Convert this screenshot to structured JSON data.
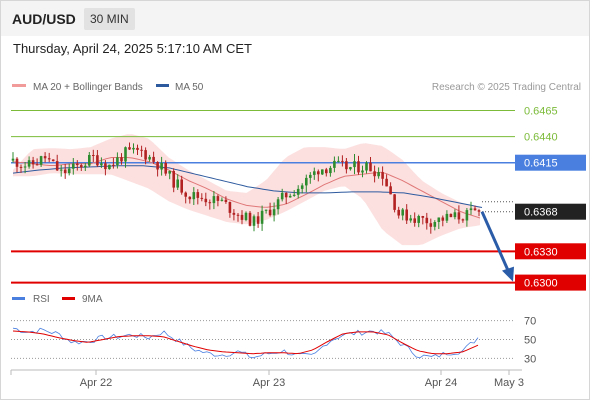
{
  "header": {
    "pair": "AUD/USD",
    "timeframe": "30 MIN"
  },
  "datetime": "Thursday, April 24, 2025 5:17:10 AM CET",
  "legend": {
    "ma20_bb": "MA 20 + Bollinger Bands",
    "ma50": "MA 50"
  },
  "copyright": "Research © 2025 Trading Central",
  "colors": {
    "bb": "#f29b9b",
    "ma50": "#2d5a9e",
    "green": "#7cbb3a",
    "blue": "#4a7fe0",
    "red": "#e00000",
    "candle_up": "#2e8b2e",
    "candle_down": "#b22222",
    "arrow": "#2a5ca8"
  },
  "chart_data": [
    {
      "type": "candlestick",
      "title": "AUD/USD 30 MIN",
      "ylim": [
        0.6291,
        0.6478
      ],
      "x_ticks": [
        "Apr 22",
        "Apr 23",
        "Apr 24",
        "May 3"
      ],
      "levels": [
        {
          "value": 0.6465,
          "label": "0.6465",
          "style": "resistance",
          "color": "#7cbb3a"
        },
        {
          "value": 0.644,
          "label": "0.6440",
          "style": "resistance",
          "color": "#7cbb3a"
        },
        {
          "value": 0.6415,
          "label": "0.6415",
          "style": "pivot",
          "color": "#4a7fe0"
        },
        {
          "value": 0.6368,
          "label": "0.6368",
          "style": "last",
          "color": "#333333"
        },
        {
          "value": 0.633,
          "label": "0.6330",
          "style": "support",
          "color": "#e00000"
        },
        {
          "value": 0.63,
          "label": "0.6300",
          "style": "support",
          "color": "#e00000"
        }
      ],
      "price_anchors": [
        0.6417,
        0.6412,
        0.642,
        0.6405,
        0.6411,
        0.642,
        0.6412,
        0.6424,
        0.6426,
        0.6414,
        0.6397,
        0.6384,
        0.6381,
        0.6377,
        0.6366,
        0.6358,
        0.637,
        0.6384,
        0.6394,
        0.6409,
        0.6412,
        0.641,
        0.6412,
        0.6404,
        0.6366,
        0.6362,
        0.6359,
        0.6362,
        0.6364,
        0.6368
      ],
      "ma20_anchors": [
        0.6416,
        0.6414,
        0.6412,
        0.6414,
        0.6414,
        0.642,
        0.642,
        0.6416,
        0.6408,
        0.6398,
        0.639,
        0.638,
        0.6374,
        0.6372,
        0.6375,
        0.6384,
        0.6394,
        0.6402,
        0.6404,
        0.6406,
        0.6398,
        0.6388,
        0.6378,
        0.6368,
        0.6362
      ],
      "bb_upper_anchors": [
        0.6408,
        0.6428,
        0.6429,
        0.6428,
        0.643,
        0.6438,
        0.6443,
        0.6438,
        0.642,
        0.6408,
        0.6398,
        0.6388,
        0.6386,
        0.6398,
        0.642,
        0.643,
        0.643,
        0.6428,
        0.6434,
        0.6431,
        0.6418,
        0.6398,
        0.6386,
        0.6377,
        0.6372
      ],
      "bb_lower_anchors": [
        0.6402,
        0.6402,
        0.6405,
        0.6404,
        0.6404,
        0.6404,
        0.6397,
        0.639,
        0.6378,
        0.637,
        0.6364,
        0.6358,
        0.6356,
        0.636,
        0.6368,
        0.6378,
        0.6388,
        0.6393,
        0.638,
        0.635,
        0.6336,
        0.6336,
        0.6345,
        0.6352,
        0.6355
      ],
      "ma50_anchors": [
        0.6405,
        0.6408,
        0.641,
        0.6411,
        0.6412,
        0.6412,
        0.641,
        0.6404,
        0.6398,
        0.6392,
        0.6388,
        0.6386,
        0.6386,
        0.6387,
        0.6387,
        0.6386,
        0.6382,
        0.6377,
        0.6372
      ],
      "projection": {
        "from": 0.6368,
        "to": 0.63,
        "style": "arrow"
      }
    },
    {
      "type": "line",
      "title": "RSI",
      "legend": [
        "RSI",
        "9MA"
      ],
      "ylim": [
        22,
        78
      ],
      "y_ticks": [
        70,
        50,
        30
      ],
      "series": [
        {
          "name": "RSI",
          "color": "#4a7fe0",
          "values": [
            62,
            58,
            60,
            56,
            47,
            48,
            52,
            53,
            55,
            52,
            58,
            49,
            40,
            35,
            34,
            37,
            31,
            35,
            38,
            33,
            32,
            48,
            55,
            57,
            59,
            56,
            44,
            33,
            31,
            36,
            38,
            52
          ]
        },
        {
          "name": "9MA",
          "color": "#e00000",
          "values": [
            59,
            58,
            56,
            52,
            49,
            47,
            50,
            53,
            54,
            54,
            53,
            48,
            43,
            39,
            37,
            36,
            35,
            36,
            36,
            35,
            39,
            48,
            56,
            58,
            58,
            55,
            46,
            38,
            35,
            35,
            37,
            44
          ]
        }
      ]
    }
  ]
}
